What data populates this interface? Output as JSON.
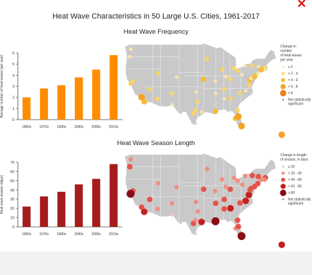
{
  "window": {
    "close_glyph": "✕",
    "close_color": "#e01010"
  },
  "titles": {
    "main": "Heat Wave Characteristics in 50 Large U.S. Cities, 1961-2017",
    "frequency": "Heat Wave Frequency",
    "season": "Heat Wave Season Length"
  },
  "chart_data": [
    {
      "type": "bar",
      "title": "Heat Wave Frequency",
      "ylabel": "Average number of heat waves (per year)",
      "categories": [
        "1960s",
        "1970s",
        "1980s",
        "1990s",
        "2000s",
        "2010s"
      ],
      "values": [
        2.0,
        2.8,
        3.1,
        3.8,
        4.5,
        5.8
      ],
      "ylim": [
        0,
        6
      ],
      "yticks": [
        0,
        1,
        2,
        3,
        4,
        5,
        6
      ],
      "color": "#ff8c00"
    },
    {
      "type": "bar",
      "title": "Heat Wave Season Length",
      "ylabel": "Heat wave season (days)",
      "categories": [
        "1960s",
        "1970s",
        "1980s",
        "1990s",
        "2000s",
        "2010s"
      ],
      "values": [
        22,
        33,
        38,
        46,
        52,
        68
      ],
      "ylim": [
        0,
        70
      ],
      "yticks": [
        0,
        10,
        20,
        30,
        40,
        50,
        60,
        70
      ],
      "color": "#a51c1c"
    }
  ],
  "legends": {
    "frequency": {
      "title": [
        "Change in",
        "number",
        "of heat waves",
        "per year"
      ],
      "items": [
        "≤ 2",
        "> 2 - 4",
        "> 4 - 6",
        "> 6 - 8",
        "> 8"
      ],
      "colors": [
        "#fbe7a2",
        "#f9d46a",
        "#f7bb3a",
        "#f5a226",
        "#f07f14"
      ],
      "ns_label": [
        "Not statistically",
        "significant"
      ]
    },
    "season": {
      "title": [
        "Change in length",
        "of season, in days"
      ],
      "items": [
        "≤ 20",
        "> 20 - 40",
        "> 40 - 60",
        "> 60 - 80",
        "> 80"
      ],
      "colors": [
        "#f8c3b8",
        "#f08e7f",
        "#e5534a",
        "#c51f20",
        "#8a0e14"
      ],
      "ns_label": [
        "Not statistically",
        "significant"
      ]
    }
  },
  "maps": {
    "frequency": {
      "land_color": "#c9c9c9",
      "cities": [
        {
          "x": -117.2,
          "y": 32.7,
          "v": 3
        },
        {
          "x": -118.2,
          "y": 34.0,
          "v": 4
        },
        {
          "x": -121.5,
          "y": 38.6,
          "v": 2
        },
        {
          "x": -122.4,
          "y": 37.8,
          "v": 2
        },
        {
          "x": -122.3,
          "y": 47.6,
          "v": 1
        },
        {
          "x": -122.7,
          "y": 45.5,
          "v": 1
        },
        {
          "x": -115.1,
          "y": 36.2,
          "v": 2
        },
        {
          "x": -112.1,
          "y": 33.5,
          "v": 2
        },
        {
          "x": -111.9,
          "y": 40.8,
          "v": 2
        },
        {
          "x": -104.9,
          "y": 39.7,
          "v": 1
        },
        {
          "x": -106.6,
          "y": 35.1,
          "v": 2
        },
        {
          "x": -106.5,
          "y": 31.8,
          "v": 1
        },
        {
          "x": -98.5,
          "y": 29.4,
          "v": 2
        },
        {
          "x": -97.7,
          "y": 30.3,
          "v": 2
        },
        {
          "x": -96.8,
          "y": 32.8,
          "v": 2
        },
        {
          "x": -95.4,
          "y": 29.8,
          "v": 1
        },
        {
          "x": -97.5,
          "y": 35.5,
          "v": 1
        },
        {
          "x": -94.6,
          "y": 39.1,
          "v": 3
        },
        {
          "x": -93.3,
          "y": 44.9,
          "v": 2
        },
        {
          "x": -90.2,
          "y": 38.6,
          "v": 1
        },
        {
          "x": -87.6,
          "y": 41.9,
          "v": 2
        },
        {
          "x": -83.0,
          "y": 42.3,
          "v": 2
        },
        {
          "x": -86.2,
          "y": 39.8,
          "v": 1
        },
        {
          "x": -84.5,
          "y": 39.1,
          "v": 2
        },
        {
          "x": -81.7,
          "y": 41.5,
          "v": 2
        },
        {
          "x": -90.1,
          "y": 30.0,
          "v": 3
        },
        {
          "x": -90.0,
          "y": 35.1,
          "v": 1
        },
        {
          "x": -86.8,
          "y": 36.2,
          "v": 2
        },
        {
          "x": -84.4,
          "y": 33.7,
          "v": 2
        },
        {
          "x": -86.8,
          "y": 33.5,
          "v": 1
        },
        {
          "x": -81.7,
          "y": 30.3,
          "v": 2
        },
        {
          "x": -82.5,
          "y": 28.0,
          "v": 3
        },
        {
          "x": -80.2,
          "y": 25.8,
          "v": 4
        },
        {
          "x": -81.4,
          "y": 28.5,
          "v": 4
        },
        {
          "x": -80.8,
          "y": 35.2,
          "v": 2
        },
        {
          "x": -78.6,
          "y": 35.8,
          "v": 1
        },
        {
          "x": -77.4,
          "y": 37.5,
          "v": 2
        },
        {
          "x": -77.0,
          "y": 38.9,
          "v": 3
        },
        {
          "x": -76.6,
          "y": 39.3,
          "v": 1
        },
        {
          "x": -75.2,
          "y": 39.9,
          "v": 3
        },
        {
          "x": -74.0,
          "y": 40.7,
          "v": 1
        },
        {
          "x": -71.1,
          "y": 42.4,
          "v": 2
        },
        {
          "x": -71.4,
          "y": 41.8,
          "v": 1
        },
        {
          "x": -72.7,
          "y": 41.8,
          "v": 3
        },
        {
          "x": -73.8,
          "y": 42.7,
          "v": 1
        },
        {
          "x": -79.9,
          "y": 40.4,
          "v": 1
        },
        {
          "x": -76.1,
          "y": 43.0,
          "v": 2
        },
        {
          "x": -78.9,
          "y": 42.9,
          "v": 1
        }
      ]
    },
    "season": {
      "land_color": "#c9c9c9",
      "cities": [
        {
          "x": -117.2,
          "y": 32.7,
          "v": 4
        },
        {
          "x": -118.2,
          "y": 34.0,
          "v": 3
        },
        {
          "x": -121.5,
          "y": 38.6,
          "v": 3
        },
        {
          "x": -122.4,
          "y": 37.8,
          "v": 5
        },
        {
          "x": -122.3,
          "y": 47.6,
          "v": 2
        },
        {
          "x": -122.7,
          "y": 45.5,
          "v": 3
        },
        {
          "x": -115.1,
          "y": 36.2,
          "v": 3
        },
        {
          "x": -112.1,
          "y": 33.5,
          "v": 2
        },
        {
          "x": -111.9,
          "y": 40.8,
          "v": 2
        },
        {
          "x": -104.9,
          "y": 39.7,
          "v": 2
        },
        {
          "x": -106.6,
          "y": 35.1,
          "v": 2
        },
        {
          "x": -106.5,
          "y": 31.8,
          "v": 1
        },
        {
          "x": -98.5,
          "y": 29.4,
          "v": 3
        },
        {
          "x": -97.7,
          "y": 30.3,
          "v": 2
        },
        {
          "x": -96.8,
          "y": 32.8,
          "v": 2
        },
        {
          "x": -95.4,
          "y": 29.8,
          "v": 4
        },
        {
          "x": -97.5,
          "y": 35.5,
          "v": 2
        },
        {
          "x": -94.6,
          "y": 39.1,
          "v": 3
        },
        {
          "x": -93.3,
          "y": 44.9,
          "v": 2
        },
        {
          "x": -90.2,
          "y": 38.6,
          "v": 2
        },
        {
          "x": -87.6,
          "y": 41.9,
          "v": 2
        },
        {
          "x": -83.0,
          "y": 42.3,
          "v": 2
        },
        {
          "x": -86.2,
          "y": 39.8,
          "v": 2
        },
        {
          "x": -84.5,
          "y": 39.1,
          "v": 3
        },
        {
          "x": -81.7,
          "y": 41.5,
          "v": 2
        },
        {
          "x": -90.1,
          "y": 30.0,
          "v": 5
        },
        {
          "x": -90.0,
          "y": 35.1,
          "v": 3
        },
        {
          "x": -86.8,
          "y": 36.2,
          "v": 3
        },
        {
          "x": -84.4,
          "y": 33.7,
          "v": 4
        },
        {
          "x": -86.8,
          "y": 33.5,
          "v": 3
        },
        {
          "x": -81.7,
          "y": 30.3,
          "v": 3
        },
        {
          "x": -82.5,
          "y": 28.0,
          "v": 2
        },
        {
          "x": -80.2,
          "y": 25.8,
          "v": 5
        },
        {
          "x": -81.4,
          "y": 28.5,
          "v": 3
        },
        {
          "x": -80.8,
          "y": 35.2,
          "v": 3
        },
        {
          "x": -78.6,
          "y": 35.8,
          "v": 4
        },
        {
          "x": -77.4,
          "y": 37.5,
          "v": 4
        },
        {
          "x": -77.0,
          "y": 38.9,
          "v": 3
        },
        {
          "x": -76.6,
          "y": 39.3,
          "v": 3
        },
        {
          "x": -75.2,
          "y": 39.9,
          "v": 3
        },
        {
          "x": -74.0,
          "y": 40.7,
          "v": 3
        },
        {
          "x": -71.1,
          "y": 42.4,
          "v": 3
        },
        {
          "x": -71.4,
          "y": 41.8,
          "v": 2
        },
        {
          "x": -72.7,
          "y": 41.8,
          "v": 2
        },
        {
          "x": -73.8,
          "y": 42.7,
          "v": 3
        },
        {
          "x": -79.9,
          "y": 40.4,
          "v": 2
        },
        {
          "x": -76.1,
          "y": 43.0,
          "v": 3
        },
        {
          "x": -78.9,
          "y": 42.9,
          "v": 2
        }
      ]
    }
  }
}
